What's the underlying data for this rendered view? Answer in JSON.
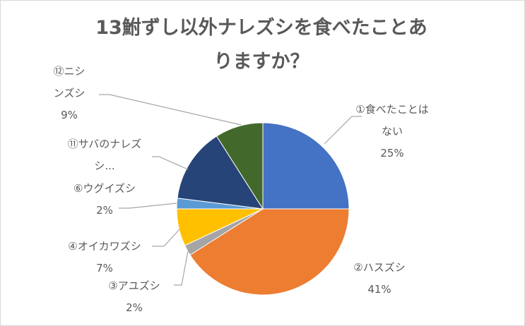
{
  "chart_data": {
    "type": "pie",
    "title": "13鮒ずし以外ナレズシを食べたことありますか？",
    "title_lines": [
      "13鮒ずし以外ナレズシを食べたことあ",
      "りますか？"
    ],
    "slices": [
      {
        "label": "①食べたことはない",
        "label_lines": [
          "①食べたことは",
          "ない"
        ],
        "value": 25,
        "value_label": "25%",
        "color": "#4472c4"
      },
      {
        "label": "②ハスズシ",
        "label_lines": [
          "②ハスズシ"
        ],
        "value": 41,
        "value_label": "41%",
        "color": "#ed7d31"
      },
      {
        "label": "③アユズシ",
        "label_lines": [
          "③アユズシ"
        ],
        "value": 2,
        "value_label": "2%",
        "color": "#a5a5a5"
      },
      {
        "label": "④オイカワズシ",
        "label_lines": [
          "④オイカワズシ"
        ],
        "value": 7,
        "value_label": "7%",
        "color": "#ffc000"
      },
      {
        "label": "⑥ウグイズシ",
        "label_lines": [
          "⑥ウグイズシ"
        ],
        "value": 2,
        "value_label": "2%",
        "color": "#5b9bd5"
      },
      {
        "label": "⑪サバのナレズシ…",
        "label_lines": [
          "⑪サバのナレズ",
          "シ..."
        ],
        "value": 14,
        "value_label": "",
        "color": "#264478"
      },
      {
        "label": "⑫ニシンズシ",
        "label_lines": [
          "⑫ニシ",
          "ンズシ"
        ],
        "value": 9,
        "value_label": "9%",
        "color": "#43682b"
      }
    ],
    "legend": "none"
  }
}
